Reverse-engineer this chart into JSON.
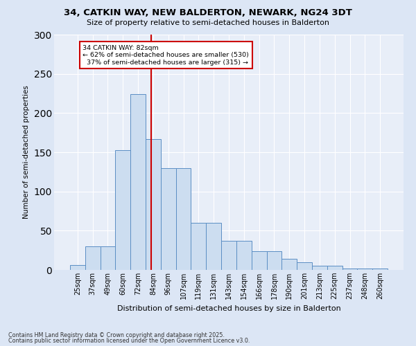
{
  "title": "34, CATKIN WAY, NEW BALDERTON, NEWARK, NG24 3DT",
  "subtitle": "Size of property relative to semi-detached houses in Balderton",
  "xlabel": "Distribution of semi-detached houses by size in Balderton",
  "ylabel": "Number of semi-detached properties",
  "categories": [
    "25sqm",
    "37sqm",
    "49sqm",
    "60sqm",
    "72sqm",
    "84sqm",
    "96sqm",
    "107sqm",
    "119sqm",
    "131sqm",
    "143sqm",
    "154sqm",
    "166sqm",
    "178sqm",
    "190sqm",
    "201sqm",
    "213sqm",
    "225sqm",
    "237sqm",
    "248sqm",
    "260sqm"
  ],
  "values": [
    6,
    30,
    30,
    153,
    224,
    167,
    130,
    130,
    60,
    60,
    37,
    37,
    24,
    24,
    14,
    10,
    5,
    5,
    2,
    2,
    2
  ],
  "bar_color": "#ccddf0",
  "bar_edge_color": "#5b8ec4",
  "vline_color": "#cc0000",
  "annotation_label": "34 CATKIN WAY: 82sqm",
  "pct_smaller": "62% of semi-detached houses are smaller (530)",
  "pct_larger": "37% of semi-detached houses are larger (315)",
  "annotation_box_edgecolor": "#cc0000",
  "ylim": [
    0,
    300
  ],
  "yticks": [
    0,
    50,
    100,
    150,
    200,
    250,
    300
  ],
  "footnote1": "Contains HM Land Registry data © Crown copyright and database right 2025.",
  "footnote2": "Contains public sector information licensed under the Open Government Licence v3.0.",
  "bg_color": "#dce6f5",
  "plot_bg_color": "#e8eef8"
}
